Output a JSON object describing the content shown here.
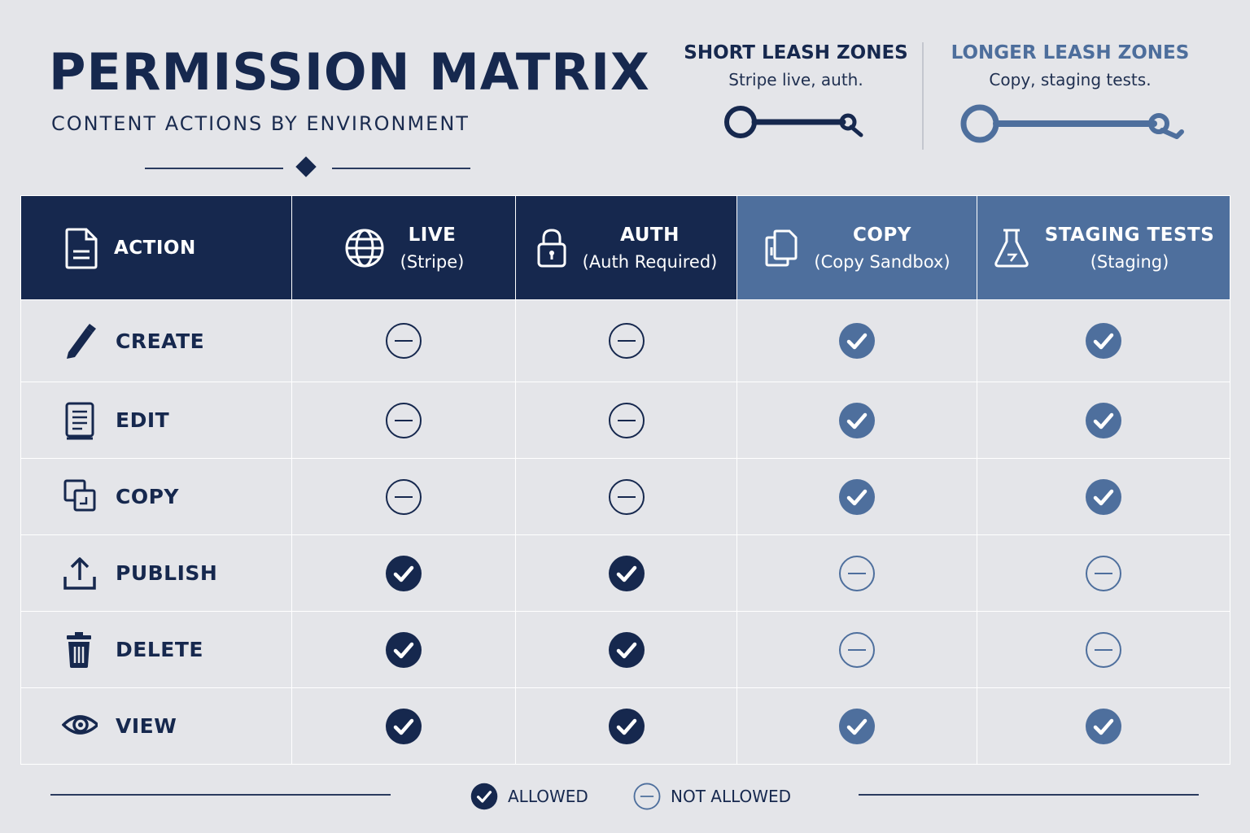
{
  "header": {
    "title": "PERMISSION MATRIX",
    "subtitle": "CONTENT ACTIONS BY ENVIRONMENT"
  },
  "zones": {
    "short": {
      "title": "SHORT LEASH ZONES",
      "description": "Stripe live, auth.",
      "icon": "short-leash-icon"
    },
    "long": {
      "title": "LONGER LEASH ZONES",
      "description": "Copy, staging tests.",
      "icon": "long-leash-icon"
    }
  },
  "colors": {
    "dark": "#16284e",
    "light": "#4e6f9d",
    "background": "#e4e5e9"
  },
  "table": {
    "action_header": {
      "name": "ACTION",
      "icon": "document-icon"
    },
    "columns": [
      {
        "name": "LIVE",
        "sub": "(Stripe)",
        "icon": "globe-icon",
        "tone": "dark"
      },
      {
        "name": "AUTH",
        "sub": "(Auth Required)",
        "icon": "lock-icon",
        "tone": "dark"
      },
      {
        "name": "COPY",
        "sub": "(Copy Sandbox)",
        "icon": "files-icon",
        "tone": "light"
      },
      {
        "name": "STAGING TESTS",
        "sub": "(Staging)",
        "icon": "flask-icon",
        "tone": "light"
      }
    ],
    "rows": [
      {
        "action": "CREATE",
        "icon": "pencil-icon",
        "cells": [
          "not_allowed",
          "not_allowed",
          "allowed",
          "allowed"
        ]
      },
      {
        "action": "EDIT",
        "icon": "notebook-icon",
        "cells": [
          "not_allowed",
          "not_allowed",
          "allowed",
          "allowed"
        ]
      },
      {
        "action": "COPY",
        "icon": "copy-icon",
        "cells": [
          "not_allowed",
          "not_allowed",
          "allowed",
          "allowed"
        ]
      },
      {
        "action": "PUBLISH",
        "icon": "upload-icon",
        "cells": [
          "allowed",
          "allowed",
          "not_allowed",
          "not_allowed"
        ]
      },
      {
        "action": "DELETE",
        "icon": "trash-icon",
        "cells": [
          "allowed",
          "allowed",
          "not_allowed",
          "not_allowed"
        ]
      },
      {
        "action": "VIEW",
        "icon": "eye-icon",
        "cells": [
          "allowed",
          "allowed",
          "allowed",
          "allowed"
        ]
      }
    ]
  },
  "legend": {
    "allowed": "ALLOWED",
    "not_allowed": "NOT ALLOWED"
  }
}
